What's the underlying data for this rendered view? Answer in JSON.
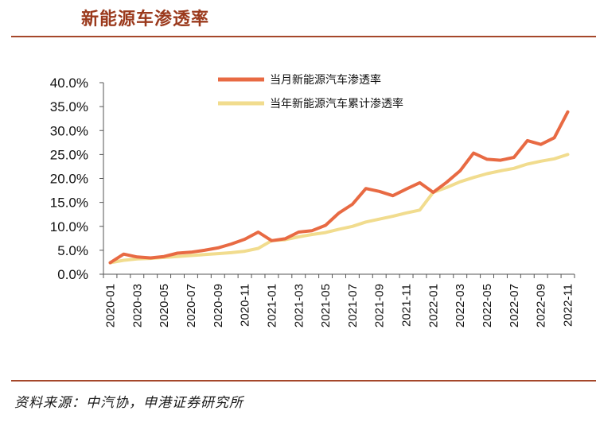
{
  "title": "新能源车渗透率",
  "source": "资料来源：中汽协，申港证券研究所",
  "chart_data": {
    "type": "line",
    "x": [
      "2020-01",
      "2020-02",
      "2020-03",
      "2020-04",
      "2020-05",
      "2020-06",
      "2020-07",
      "2020-08",
      "2020-09",
      "2020-10",
      "2020-11",
      "2020-12",
      "2021-01",
      "2021-02",
      "2021-03",
      "2021-04",
      "2021-05",
      "2021-06",
      "2021-07",
      "2021-08",
      "2021-09",
      "2021-10",
      "2021-11",
      "2021-12",
      "2022-01",
      "2022-02",
      "2022-03",
      "2022-04",
      "2022-05",
      "2022-06",
      "2022-07",
      "2022-08",
      "2022-09",
      "2022-10",
      "2022-11"
    ],
    "xticks": [
      "2020-01",
      "2020-03",
      "2020-05",
      "2020-07",
      "2020-09",
      "2020-11",
      "2021-01",
      "2021-03",
      "2021-05",
      "2021-07",
      "2021-09",
      "2021-11",
      "2022-01",
      "2022-03",
      "2022-05",
      "2022-07",
      "2022-09",
      "2022-11"
    ],
    "yticks": [
      "0.0%",
      "5.0%",
      "10.0%",
      "15.0%",
      "20.0%",
      "25.0%",
      "30.0%",
      "35.0%",
      "40.0%"
    ],
    "ylim": [
      0,
      40
    ],
    "series": [
      {
        "name": "当月新能源汽车渗透率",
        "color": "#e86a43",
        "values": [
          2.4,
          4.2,
          3.6,
          3.4,
          3.7,
          4.4,
          4.6,
          5.0,
          5.5,
          6.3,
          7.3,
          8.8,
          7.0,
          7.4,
          8.8,
          9.1,
          10.2,
          12.8,
          14.6,
          17.9,
          17.3,
          16.4,
          17.8,
          19.1,
          17.1,
          19.2,
          21.6,
          25.3,
          24.0,
          23.8,
          24.4,
          27.9,
          27.1,
          28.5,
          33.9
        ]
      },
      {
        "name": "当年新能源汽车累计渗透率",
        "color": "#f1dc8e",
        "values": [
          2.4,
          2.9,
          3.2,
          3.3,
          3.5,
          3.7,
          3.9,
          4.1,
          4.3,
          4.5,
          4.8,
          5.4,
          7.0,
          7.2,
          7.8,
          8.3,
          8.7,
          9.4,
          10.0,
          10.9,
          11.5,
          12.1,
          12.8,
          13.4,
          17.1,
          18.1,
          19.3,
          20.2,
          21.0,
          21.6,
          22.1,
          23.0,
          23.6,
          24.1,
          25.0
        ]
      }
    ]
  }
}
